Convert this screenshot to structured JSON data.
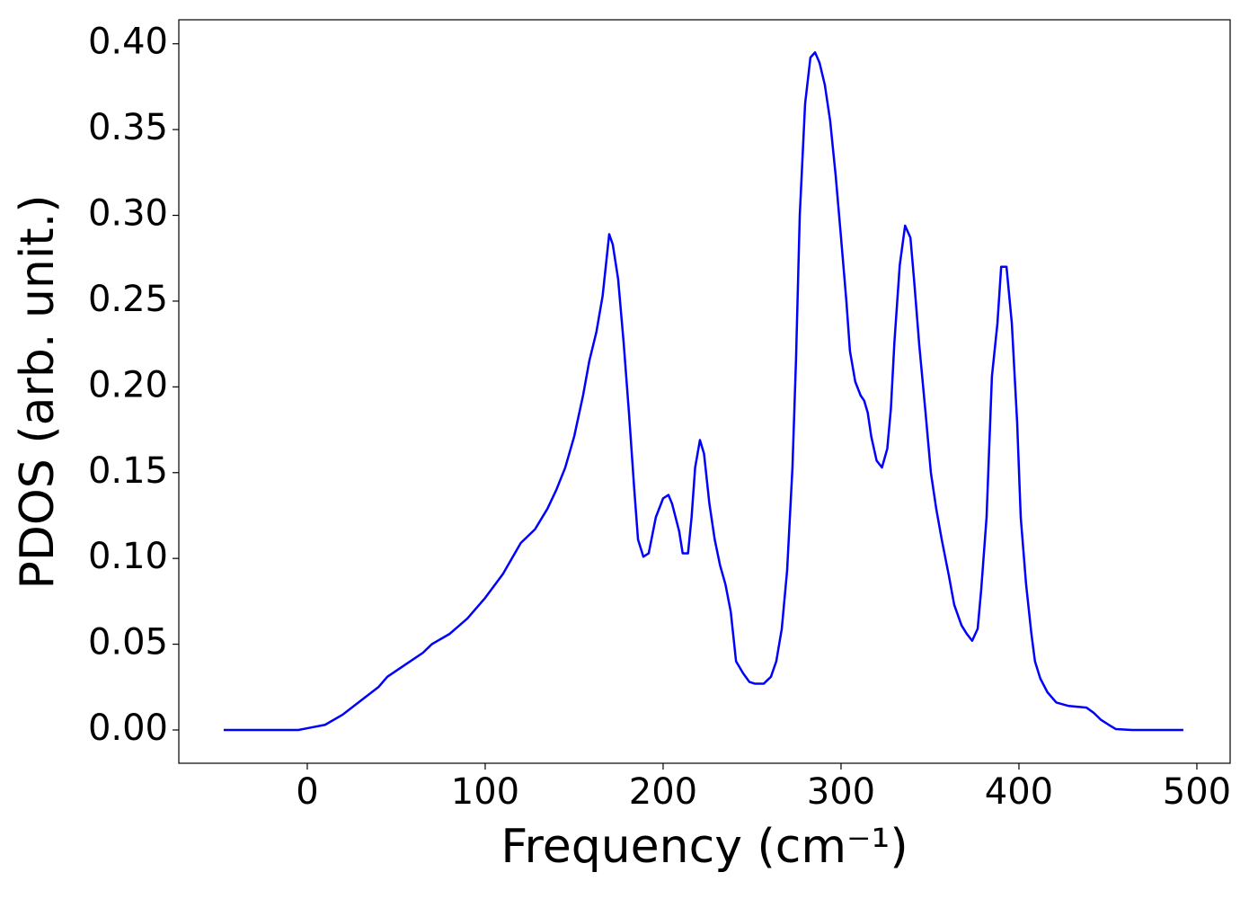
{
  "chart_data": {
    "type": "line",
    "xlabel": "Frequency (cm⁻¹)",
    "ylabel": "PDOS (arb. unit.)",
    "color": "#0000ff",
    "x": [
      -47,
      -20,
      -5,
      0,
      10,
      20,
      30,
      40,
      45,
      55,
      65,
      70,
      80,
      90,
      100,
      110,
      120,
      128,
      135,
      140,
      145,
      150,
      155,
      158.5,
      162.5,
      166,
      169.7,
      171.7,
      174.7,
      177.8,
      180.8,
      183.8,
      185.9,
      188.9,
      191.9,
      195.9,
      200,
      203,
      205,
      209,
      211,
      214,
      216,
      218,
      220.7,
      223,
      226,
      229,
      232,
      235,
      238,
      241,
      245,
      248.5,
      251.5,
      256.6,
      260.6,
      263.6,
      266.7,
      269.7,
      272.7,
      274.7,
      276.8,
      279.8,
      282.8,
      285.4,
      287.9,
      290.9,
      293.9,
      297,
      300,
      303,
      305,
      308,
      311,
      313,
      315,
      317,
      320,
      323,
      326,
      328,
      330,
      333,
      336,
      339,
      341,
      344,
      347.5,
      350.5,
      353.5,
      356.6,
      360.6,
      363.6,
      367.7,
      370.7,
      373.7,
      376.8,
      378.8,
      381.8,
      384.8,
      387.9,
      390,
      393,
      396,
      399,
      401,
      404,
      407,
      409,
      412,
      416,
      421,
      428,
      438,
      442,
      446,
      450.5,
      454.5,
      463.6,
      492.4
    ],
    "values": [
      0,
      0,
      0,
      0.001,
      0.003,
      0.009,
      0.017,
      0.025,
      0.031,
      0.038,
      0.045,
      0.05,
      0.056,
      0.065,
      0.077,
      0.091,
      0.109,
      0.117,
      0.129,
      0.14,
      0.153,
      0.171,
      0.195,
      0.215,
      0.232,
      0.253,
      0.289,
      0.283,
      0.263,
      0.226,
      0.185,
      0.14,
      0.111,
      0.101,
      0.103,
      0.124,
      0.135,
      0.137,
      0.132,
      0.116,
      0.103,
      0.103,
      0.124,
      0.153,
      0.169,
      0.161,
      0.132,
      0.111,
      0.096,
      0.085,
      0.069,
      0.04,
      0.033,
      0.028,
      0.027,
      0.027,
      0.031,
      0.04,
      0.059,
      0.093,
      0.153,
      0.216,
      0.3,
      0.365,
      0.392,
      0.395,
      0.389,
      0.376,
      0.355,
      0.323,
      0.287,
      0.25,
      0.221,
      0.203,
      0.195,
      0.192,
      0.185,
      0.171,
      0.157,
      0.153,
      0.164,
      0.187,
      0.226,
      0.271,
      0.294,
      0.287,
      0.263,
      0.224,
      0.185,
      0.15,
      0.129,
      0.111,
      0.09,
      0.073,
      0.061,
      0.056,
      0.052,
      0.059,
      0.082,
      0.124,
      0.206,
      0.237,
      0.27,
      0.27,
      0.237,
      0.179,
      0.124,
      0.085,
      0.056,
      0.04,
      0.03,
      0.022,
      0.016,
      0.014,
      0.013,
      0.01,
      0.006,
      0.003,
      0.0005,
      0,
      0
    ],
    "xlim": [
      -72.2,
      518.7
    ],
    "ylim": [
      -0.0194,
      0.414
    ],
    "xticks": [
      0,
      100,
      200,
      300,
      400,
      500
    ],
    "yticks": [
      {
        "value": 0,
        "label": "0.00"
      },
      {
        "value": 0.05,
        "label": "0.05"
      },
      {
        "value": 0.1,
        "label": "0.10"
      },
      {
        "value": 0.15,
        "label": "0.15"
      },
      {
        "value": 0.2,
        "label": "0.20"
      },
      {
        "value": 0.25,
        "label": "0.25"
      },
      {
        "value": 0.3,
        "label": "0.30"
      },
      {
        "value": 0.35,
        "label": "0.35"
      },
      {
        "value": 0.4,
        "label": "0.40"
      }
    ],
    "grid": false
  }
}
